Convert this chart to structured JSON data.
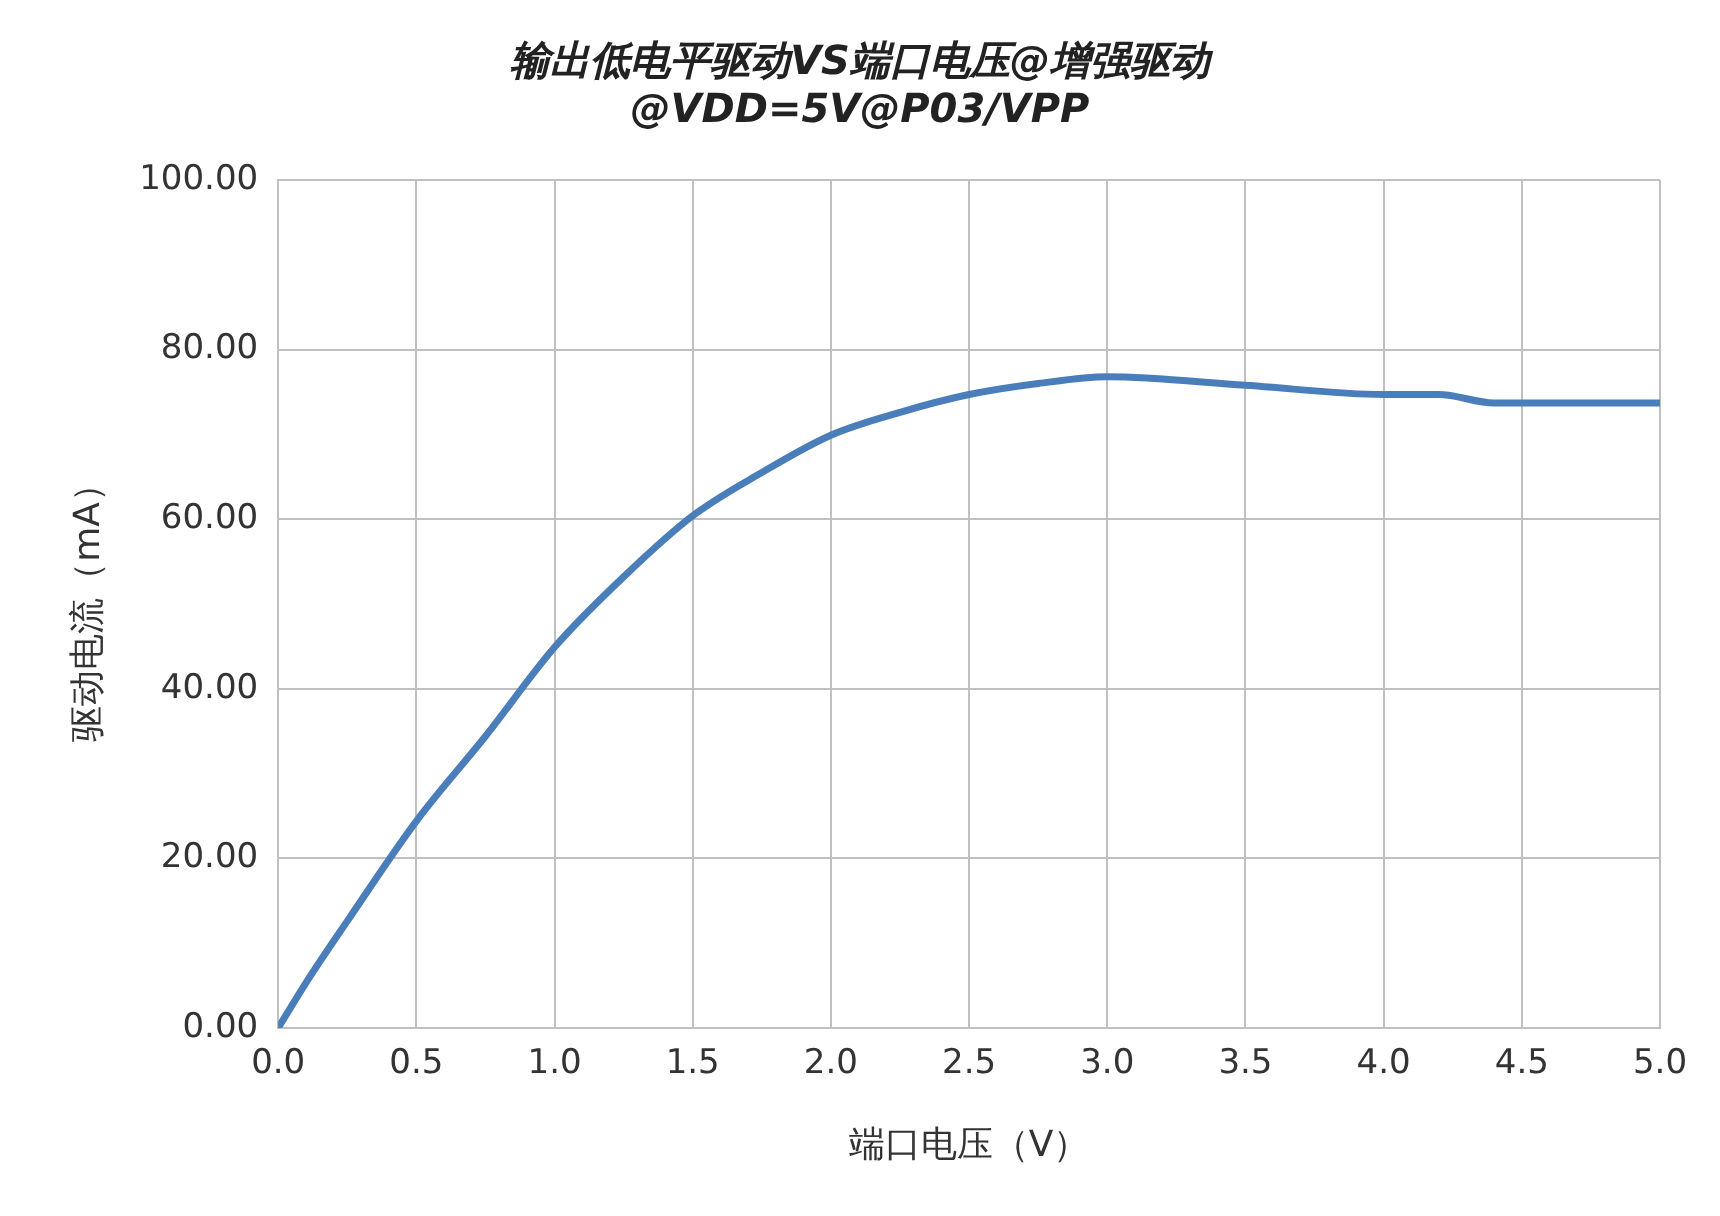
{
  "chart_data": {
    "type": "line",
    "title": [
      "输出低电平驱动VS端口电压@增强驱动",
      "@VDD=5V@P03/VPP"
    ],
    "xlabel": "端口电压（V）",
    "ylabel": "驱动电流（mA）",
    "x": [
      0,
      0.1,
      0.25,
      0.5,
      0.75,
      1.0,
      1.25,
      1.5,
      1.75,
      2.0,
      2.25,
      2.5,
      2.75,
      3.0,
      3.5,
      4.0,
      4.2,
      4.4,
      5.0
    ],
    "series": [
      {
        "color": "#4a7ebb",
        "values": [
          0,
          5.3,
          12.6,
          24.4,
          34.4,
          44.9,
          53.2,
          60.4,
          65.5,
          69.9,
          72.6,
          74.7,
          76,
          76.8,
          75.8,
          74.7,
          74.7,
          73.7,
          73.7
        ]
      }
    ],
    "xlim": [
      0,
      5
    ],
    "xticks": [
      {
        "value": 0,
        "label": "0.0"
      },
      {
        "value": 0.5,
        "label": "0.5"
      },
      {
        "value": 1,
        "label": "1.0"
      },
      {
        "value": 1.5,
        "label": "1.5"
      },
      {
        "value": 2,
        "label": "2.0"
      },
      {
        "value": 2.5,
        "label": "2.5"
      },
      {
        "value": 3,
        "label": "3.0"
      },
      {
        "value": 3.5,
        "label": "3.5"
      },
      {
        "value": 4,
        "label": "4.0"
      },
      {
        "value": 4.5,
        "label": "4.5"
      },
      {
        "value": 5,
        "label": "5.0"
      }
    ],
    "ylim": [
      0,
      100
    ],
    "yticks": [
      {
        "value": 0,
        "label": "0.00"
      },
      {
        "value": 20,
        "label": "20.00"
      },
      {
        "value": 40,
        "label": "40.00"
      },
      {
        "value": 60,
        "label": "60.00"
      },
      {
        "value": 80,
        "label": "80.00"
      },
      {
        "value": 100,
        "label": "100.00"
      }
    ],
    "grid": true,
    "marker": "none",
    "line_style": "solid"
  }
}
